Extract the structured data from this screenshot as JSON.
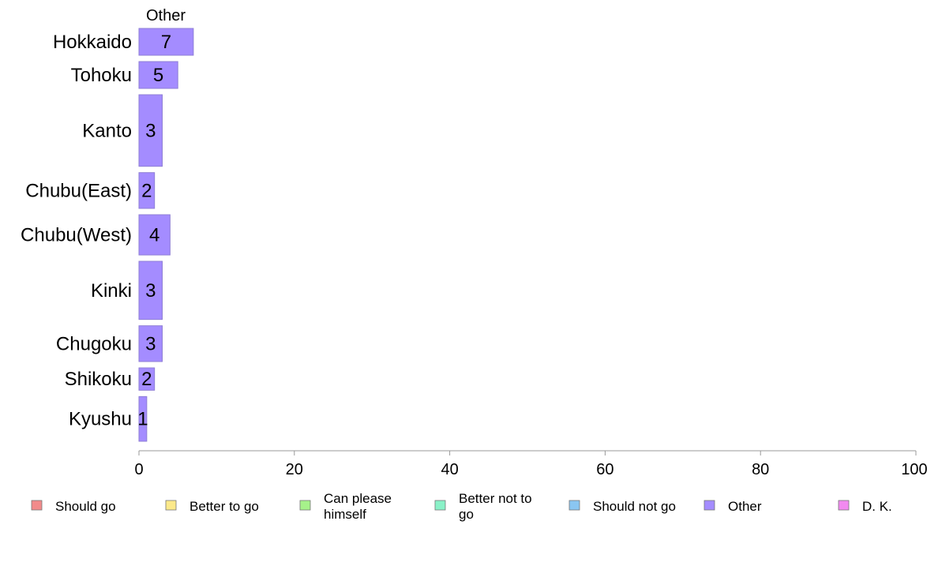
{
  "chart_data": {
    "type": "bar",
    "orientation": "horizontal",
    "column_header": "Other",
    "categories": [
      "Hokkaido",
      "Tohoku",
      "Kanto",
      "Chubu(East)",
      "Chubu(West)",
      "Kinki",
      "Chugoku",
      "Shikoku",
      "Kyushu"
    ],
    "values": [
      7,
      5,
      3,
      2,
      4,
      3,
      3,
      2,
      1
    ],
    "relative_sample_size": [
      3,
      3,
      8,
      4,
      4.5,
      6.5,
      4,
      2.5,
      5
    ],
    "xlim": [
      0,
      100
    ],
    "xticks": [
      0,
      20,
      40,
      60,
      80,
      100
    ],
    "xlabel": "",
    "ylabel": "",
    "grid": false,
    "bar_color": "#a48cff",
    "bar_edge_color": "#8f7fd6",
    "axis_color": "#999999",
    "legend": {
      "placement": "bottom",
      "items": [
        {
          "name": "Should go",
          "color": "#f28b8b"
        },
        {
          "name": "Better to go",
          "color": "#fce98a"
        },
        {
          "name": "Can please himself",
          "color": "#a6f28a"
        },
        {
          "name": "Better not to go",
          "color": "#8af2c8"
        },
        {
          "name": "Should not go",
          "color": "#8ac6f2"
        },
        {
          "name": "Other",
          "color": "#a48cff"
        },
        {
          "name": "D. K.",
          "color": "#f28af0"
        }
      ]
    }
  }
}
